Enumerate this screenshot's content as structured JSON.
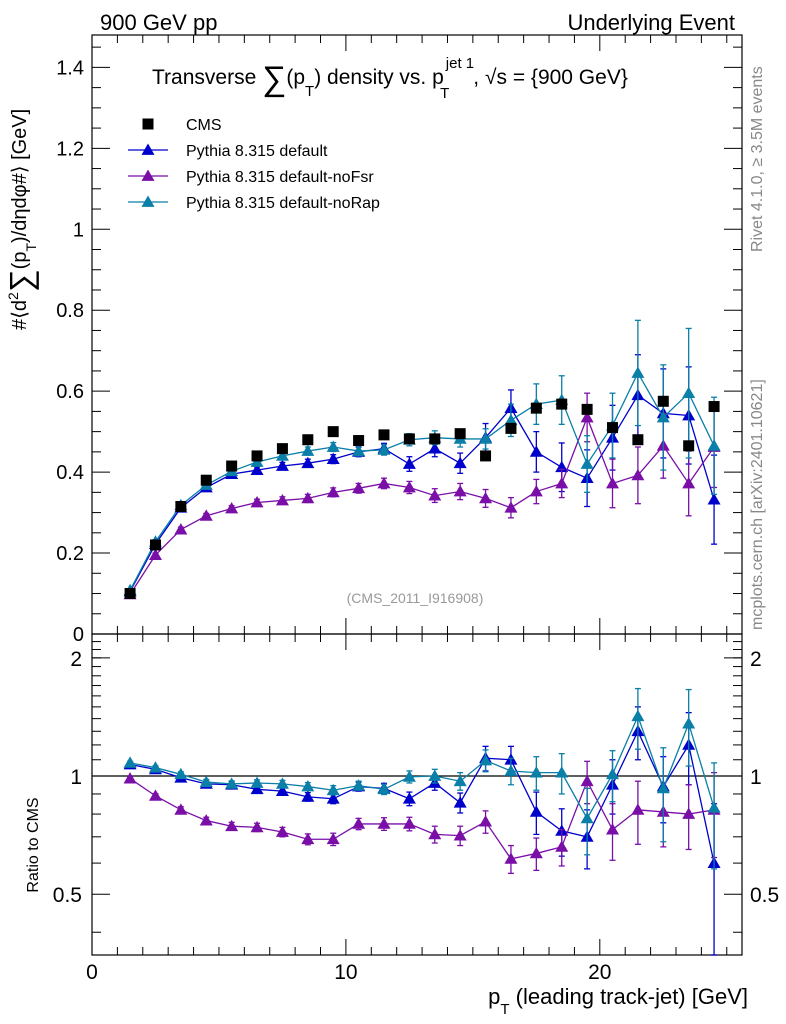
{
  "header": {
    "left": "900 GeV pp",
    "right": "Underlying Event"
  },
  "side_labels": {
    "top": "Rivet 4.1.0, ≥ 3.5M events",
    "bottom": "mcplots.cern.ch [arXiv:2401.10621]"
  },
  "watermark": "(CMS_2011_I916908)",
  "title": {
    "prefix": "Transverse ",
    "sum": "∑",
    "mid": "(p",
    "sub_t": "T",
    "mid2": ") density vs. p",
    "sup_jet": "jet 1",
    "sub_t2": "T",
    "suffix": ", √s = {900 GeV}"
  },
  "colors": {
    "data": "#000000",
    "default": "#0000cc",
    "noFsr": "#7a0fa8",
    "noRap": "#0a7fa8"
  },
  "chart_data": [
    {
      "type": "scatter",
      "panel": "main",
      "ylabel_parts": {
        "a": "#⟨d",
        "sup2": "2",
        "sum": "∑",
        "b": "(p",
        "sub_t": "T",
        "c": ")/dηdφ#⟩ [GeV]"
      },
      "xlim": [
        0,
        25.6
      ],
      "ylim": [
        0,
        1.48
      ],
      "yticks": [
        0,
        0.2,
        0.4,
        0.6,
        0.8,
        1,
        1.2,
        1.4
      ],
      "ytick_labels": [
        "0",
        "0.2",
        "0.4",
        "0.6",
        "0.8",
        "1",
        "1.2",
        "1.4"
      ],
      "x": [
        1.5,
        2.5,
        3.5,
        4.5,
        5.5,
        6.5,
        7.5,
        8.5,
        9.5,
        10.5,
        11.5,
        12.5,
        13.5,
        14.5,
        15.5,
        16.5,
        17.5,
        18.5,
        19.5,
        20.5,
        21.5,
        22.5,
        23.5,
        24.5
      ],
      "legend": [
        {
          "key": "data",
          "label": "CMS"
        },
        {
          "key": "default",
          "label": "Pythia 8.315 default"
        },
        {
          "key": "noFsr",
          "label": "Pythia 8.315 default-noFsr"
        },
        {
          "key": "noRap",
          "label": "Pythia 8.315 default-noRap"
        }
      ],
      "data": {
        "name": "CMS",
        "values": [
          0.1,
          0.22,
          0.315,
          0.38,
          0.415,
          0.44,
          0.458,
          0.48,
          0.5,
          0.478,
          0.492,
          0.482,
          0.482,
          0.495,
          0.44,
          0.508,
          0.558,
          0.568,
          0.555,
          0.51,
          0.48,
          0.575,
          0.465,
          0.562
        ]
      },
      "series": [
        {
          "key": "default",
          "name": "Pythia 8.315 default",
          "values": [
            0.105,
            0.222,
            0.312,
            0.362,
            0.395,
            0.405,
            0.415,
            0.422,
            0.432,
            0.45,
            0.458,
            0.42,
            0.458,
            0.422,
            0.485,
            0.558,
            0.45,
            0.412,
            0.385,
            0.485,
            0.59,
            0.545,
            0.54,
            0.332
          ],
          "errors": [
            0.004,
            0.005,
            0.006,
            0.006,
            0.007,
            0.008,
            0.009,
            0.01,
            0.011,
            0.012,
            0.013,
            0.018,
            0.02,
            0.025,
            0.035,
            0.045,
            0.05,
            0.06,
            0.07,
            0.08,
            0.1,
            0.11,
            0.12,
            0.11
          ]
        },
        {
          "key": "noFsr",
          "name": "Pythia 8.315 default-noFsr",
          "values": [
            0.098,
            0.195,
            0.258,
            0.292,
            0.31,
            0.325,
            0.33,
            0.335,
            0.35,
            0.36,
            0.372,
            0.362,
            0.342,
            0.352,
            0.335,
            0.312,
            0.352,
            0.372,
            0.535,
            0.372,
            0.392,
            0.465,
            0.372,
            0.462
          ],
          "errors": [
            0.004,
            0.005,
            0.006,
            0.006,
            0.007,
            0.008,
            0.009,
            0.01,
            0.011,
            0.012,
            0.013,
            0.015,
            0.017,
            0.02,
            0.022,
            0.025,
            0.03,
            0.035,
            0.06,
            0.06,
            0.07,
            0.08,
            0.08,
            0.1
          ]
        },
        {
          "key": "noRap",
          "name": "Pythia 8.315 default-noRap",
          "values": [
            0.108,
            0.228,
            0.318,
            0.368,
            0.402,
            0.425,
            0.44,
            0.452,
            0.462,
            0.452,
            0.455,
            0.48,
            0.485,
            0.482,
            0.482,
            0.528,
            0.568,
            0.578,
            0.42,
            0.515,
            0.645,
            0.535,
            0.595,
            0.465
          ],
          "errors": [
            0.004,
            0.005,
            0.006,
            0.006,
            0.007,
            0.008,
            0.009,
            0.01,
            0.011,
            0.012,
            0.013,
            0.015,
            0.017,
            0.02,
            0.025,
            0.04,
            0.05,
            0.06,
            0.07,
            0.08,
            0.13,
            0.13,
            0.16,
            0.12
          ]
        }
      ]
    },
    {
      "type": "scatter",
      "panel": "ratio",
      "ylabel": "Ratio to CMS",
      "xlabel_parts": {
        "a": "p",
        "sub_t": "T",
        "b": " (leading track-jet) [GeV]"
      },
      "xlim": [
        0,
        25.6
      ],
      "ylim": [
        0.35,
        2.3
      ],
      "xticks": [
        0,
        10,
        20
      ],
      "xtick_labels": [
        "0",
        "10",
        "20"
      ],
      "yticks": [
        0.5,
        1,
        2
      ],
      "ytick_labels": [
        "0.5",
        "1",
        "2"
      ],
      "reference": 1,
      "x": [
        1.5,
        2.5,
        3.5,
        4.5,
        5.5,
        6.5,
        7.5,
        8.5,
        9.5,
        10.5,
        11.5,
        12.5,
        13.5,
        14.5,
        15.5,
        16.5,
        17.5,
        18.5,
        19.5,
        20.5,
        21.5,
        22.5,
        23.5,
        24.5
      ],
      "series": [
        {
          "key": "default",
          "name": "Pythia 8.315 default",
          "values": [
            1.07,
            1.04,
            0.99,
            0.955,
            0.95,
            0.925,
            0.915,
            0.885,
            0.875,
            0.94,
            0.93,
            0.875,
            0.96,
            0.855,
            1.11,
            1.1,
            0.81,
            0.725,
            0.7,
            0.95,
            1.3,
            0.94,
            1.2,
            0.6
          ],
          "errors": [
            0.01,
            0.012,
            0.015,
            0.015,
            0.017,
            0.018,
            0.02,
            0.022,
            0.025,
            0.025,
            0.028,
            0.035,
            0.04,
            0.05,
            0.08,
            0.09,
            0.1,
            0.1,
            0.12,
            0.15,
            0.2,
            0.18,
            0.25,
            0.25
          ]
        },
        {
          "key": "noFsr",
          "name": "Pythia 8.315 default-noFsr",
          "values": [
            0.985,
            0.89,
            0.82,
            0.77,
            0.745,
            0.74,
            0.72,
            0.69,
            0.69,
            0.755,
            0.755,
            0.755,
            0.71,
            0.705,
            0.765,
            0.615,
            0.635,
            0.66,
            0.97,
            0.73,
            0.82,
            0.81,
            0.8,
            0.82
          ],
          "errors": [
            0.01,
            0.012,
            0.015,
            0.015,
            0.017,
            0.018,
            0.02,
            0.022,
            0.025,
            0.025,
            0.028,
            0.03,
            0.035,
            0.04,
            0.05,
            0.05,
            0.06,
            0.07,
            0.12,
            0.12,
            0.15,
            0.15,
            0.15,
            0.2
          ]
        },
        {
          "key": "noRap",
          "name": "Pythia 8.315 default-noRap",
          "values": [
            1.08,
            1.05,
            1.01,
            0.965,
            0.955,
            0.96,
            0.955,
            0.94,
            0.92,
            0.945,
            0.925,
            0.995,
            1.0,
            0.97,
            1.095,
            1.03,
            1.02,
            1.02,
            0.78,
            1.01,
            1.42,
            0.93,
            1.36,
            0.83
          ],
          "errors": [
            0.01,
            0.012,
            0.015,
            0.015,
            0.017,
            0.018,
            0.02,
            0.022,
            0.025,
            0.025,
            0.028,
            0.035,
            0.04,
            0.05,
            0.07,
            0.08,
            0.1,
            0.12,
            0.15,
            0.15,
            0.25,
            0.25,
            0.3,
            0.25
          ]
        }
      ]
    }
  ]
}
